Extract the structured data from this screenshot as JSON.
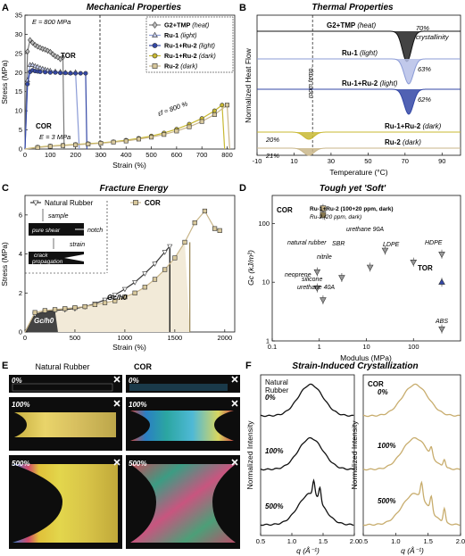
{
  "panels": {
    "A": {
      "letter": "A",
      "title": "Mechanical Properties",
      "xlabel": "Strain (%)",
      "ylabel": "Stress (MPa)",
      "xticks": [
        0,
        100,
        200,
        300,
        400,
        500,
        600,
        700,
        800
      ],
      "yticks": [
        0,
        5,
        10,
        15,
        20,
        25,
        30,
        35
      ],
      "annotations": {
        "modulus_high": "E ≈ 800 MPa",
        "modulus_low": "E = 3 MPa",
        "tor": "TOR",
        "cor": "COR",
        "strain_fail": "εf ≈ 800 %"
      },
      "legend": [
        {
          "name": "G2+TMP",
          "cond": "(heat)",
          "color": "#7a7a7a",
          "marker": "diamond"
        },
        {
          "name": "Ru-1",
          "cond": "(light)",
          "color": "#8b9bd6",
          "marker": "triangle"
        },
        {
          "name": "Ru-1+Ru-2",
          "cond": "(light)",
          "color": "#3347a6",
          "marker": "circle"
        },
        {
          "name": "Ru-1+Ru-2",
          "cond": "(dark)",
          "color": "#c8b832",
          "marker": "circle"
        },
        {
          "name": "Ru-2",
          "cond": "(dark)",
          "color": "#c9b68a",
          "marker": "square"
        }
      ]
    },
    "B": {
      "letter": "B",
      "title": "Thermal Properties",
      "xlabel": "Temperature (°C)",
      "ylabel": "Normalized Heat Flow",
      "xticks": [
        -10,
        10,
        30,
        50,
        70,
        90
      ],
      "annotation": "room temp.",
      "traces": [
        {
          "name": "G2+TMP",
          "cond": "(heat)",
          "value": "70%",
          "note": "crystallinity",
          "color": "#444444"
        },
        {
          "name": "Ru-1",
          "cond": "(light)",
          "value": "63%",
          "note": "",
          "color": "#8b9bd6"
        },
        {
          "name": "Ru-1+Ru-2",
          "cond": "(light)",
          "value": "62%",
          "note": "",
          "color": "#3347a6"
        },
        {
          "name": "Ru-1+Ru-2",
          "cond": "(dark)",
          "value": "20%",
          "note": "",
          "color": "#c8b832"
        },
        {
          "name": "Ru-2",
          "cond": "(dark)",
          "value": "21%",
          "note": "",
          "color": "#c9b68a"
        }
      ]
    },
    "C": {
      "letter": "C",
      "title": "Fracture Energy",
      "xlabel": "Strain (%)",
      "ylabel": "Stress (MPa)",
      "xticks": [
        0,
        500,
        1000,
        1500,
        2000
      ],
      "yticks": [
        0,
        2,
        4,
        6
      ],
      "legend": [
        {
          "name": "Natural Rubber",
          "color": "#333333",
          "marker": "triangle-down"
        },
        {
          "name": "COR",
          "color": "#c9b68a",
          "marker": "square"
        }
      ],
      "inset": {
        "sample": "sample",
        "pure_shear": "pure shear",
        "notch": "notch",
        "strain": "strain",
        "crack": "crack",
        "propagation": "propagation"
      },
      "area_label": "Gc/h0"
    },
    "D": {
      "letter": "D",
      "title": "Tough yet 'Soft'",
      "xlabel": "Modulus (MPa)",
      "ylabel": "Gc (kJ/m²)",
      "xticks": [
        "0.1",
        "1",
        "10",
        "100"
      ],
      "yticks": [
        "1",
        "10",
        "100"
      ],
      "cor_label": "COR",
      "cor_notes": [
        "Ru-1+Ru-2 (100+20 ppm, dark)",
        "Ru-2 (20 ppm, dark)"
      ],
      "tor_label": "TOR",
      "materials": [
        "natural rubber",
        "neoprene",
        "nitrile",
        "silicone",
        "urethane 40A",
        "SBR",
        "urethane 90A",
        "LDPE",
        "HDPE",
        "ABS"
      ]
    },
    "E": {
      "letter": "E",
      "col_left": "Natural Rubber",
      "col_right": "COR",
      "rows": [
        "0%",
        "100%",
        "500%"
      ]
    },
    "F": {
      "letter": "F",
      "title": "Strain-Induced Crystallization",
      "ylabel": "Normalized Intensity",
      "xlabel": "q (Å⁻¹)",
      "xticks": [
        "0.5",
        "1.0",
        "1.5",
        "2.0"
      ],
      "left_title_1": "Natural",
      "left_title_2": "Rubber",
      "right_title": "COR",
      "labels": [
        "0%",
        "100%",
        "500%"
      ]
    }
  },
  "chart_data": [
    {
      "panel": "A",
      "type": "line",
      "title": "Mechanical Properties",
      "xlabel": "Strain (%)",
      "ylabel": "Stress (MPa)",
      "xlim": [
        0,
        830
      ],
      "ylim": [
        0,
        35
      ],
      "series": [
        {
          "name": "G2+TMP (heat)",
          "color": "#7a7a7a",
          "x": [
            0,
            10,
            20,
            30,
            40,
            50,
            60,
            70,
            80,
            90,
            100,
            110,
            120,
            130,
            140,
            150,
            155
          ],
          "y": [
            0,
            25.5,
            28.5,
            27.8,
            27.2,
            26.8,
            26.5,
            26.2,
            26,
            25.7,
            25.4,
            24.8,
            24.3,
            24,
            23.5,
            24,
            0
          ]
        },
        {
          "name": "Ru-1 (light)",
          "color": "#8b9bd6",
          "x": [
            0,
            10,
            20,
            30,
            40,
            50,
            60,
            70,
            80,
            90,
            100,
            120,
            140,
            160,
            180,
            200,
            215
          ],
          "y": [
            0,
            18,
            22,
            22,
            21.7,
            21.5,
            21.2,
            21,
            20.8,
            20.6,
            20.5,
            20.3,
            20.2,
            20,
            19.9,
            20.1,
            0
          ]
        },
        {
          "name": "Ru-1+Ru-2 (light)",
          "color": "#3347a6",
          "x": [
            0,
            10,
            20,
            30,
            40,
            50,
            60,
            80,
            100,
            120,
            140,
            160,
            180,
            200,
            220,
            240,
            245
          ],
          "y": [
            0,
            17,
            20.2,
            20.6,
            20.4,
            20.3,
            20.2,
            20.1,
            20,
            20,
            19.9,
            19.9,
            19.8,
            19.8,
            19.8,
            19.8,
            0
          ]
        },
        {
          "name": "Ru-1+Ru-2 (dark)",
          "color": "#c8b832",
          "x": [
            0,
            50,
            100,
            150,
            200,
            250,
            300,
            350,
            400,
            450,
            500,
            550,
            600,
            650,
            700,
            750,
            780,
            790
          ],
          "y": [
            0,
            0.5,
            0.8,
            1,
            1.2,
            1.4,
            1.6,
            1.9,
            2.3,
            2.8,
            3.4,
            4.2,
            5.2,
            6.5,
            8,
            10,
            11.5,
            0
          ]
        },
        {
          "name": "Ru-2 (dark)",
          "color": "#c9b68a",
          "x": [
            0,
            50,
            100,
            150,
            200,
            250,
            300,
            350,
            400,
            450,
            500,
            550,
            600,
            650,
            700,
            750,
            800,
            810
          ],
          "y": [
            0,
            0.4,
            0.7,
            0.9,
            1.1,
            1.3,
            1.5,
            1.8,
            2.1,
            2.6,
            3.1,
            3.8,
            4.7,
            5.8,
            7.2,
            9,
            11.5,
            0
          ]
        }
      ]
    },
    {
      "panel": "B",
      "type": "line",
      "title": "Thermal Properties",
      "xlabel": "Temperature (°C)",
      "ylabel": "Normalized Heat Flow",
      "xlim": [
        -10,
        100
      ],
      "annotation_x": 20,
      "series": [
        {
          "name": "G2+TMP (heat)",
          "peak_x": 71,
          "depth": 1.0,
          "width": 3.5
        },
        {
          "name": "Ru-1 (light)",
          "peak_x": 72,
          "depth": 0.85,
          "width": 3.5
        },
        {
          "name": "Ru-1+Ru-2 (light)",
          "peak_x": 72,
          "depth": 0.85,
          "width": 3.5
        },
        {
          "name": "Ru-1+Ru-2 (dark)",
          "peak_x": 18,
          "depth": 0.3,
          "width": 4
        },
        {
          "name": "Ru-2 (dark)",
          "peak_x": 18,
          "depth": 0.3,
          "width": 4
        }
      ]
    },
    {
      "panel": "C",
      "type": "line",
      "title": "Fracture Energy",
      "xlabel": "Strain (%)",
      "ylabel": "Stress (MPa)",
      "xlim": [
        0,
        2100
      ],
      "ylim": [
        0,
        7
      ],
      "series": [
        {
          "name": "Natural Rubber",
          "color": "#333333",
          "x": [
            0,
            100,
            200,
            300,
            400,
            500,
            600,
            700,
            800,
            900,
            1000,
            1100,
            1200,
            1300,
            1400,
            1450
          ],
          "y": [
            0,
            0.9,
            1.05,
            1.1,
            1.15,
            1.2,
            1.3,
            1.45,
            1.65,
            1.9,
            2.2,
            2.55,
            3,
            3.5,
            4.1,
            4.4
          ]
        },
        {
          "name": "COR",
          "color": "#c9b68a",
          "x": [
            0,
            100,
            200,
            300,
            400,
            500,
            600,
            700,
            800,
            900,
            1000,
            1100,
            1200,
            1300,
            1400,
            1500,
            1600,
            1700,
            1800,
            1900,
            1950
          ],
          "y": [
            0,
            1,
            1.1,
            1.15,
            1.2,
            1.25,
            1.3,
            1.4,
            1.5,
            1.6,
            1.8,
            2.0,
            2.3,
            2.7,
            3.2,
            3.8,
            4.6,
            5.6,
            6.2,
            5.3,
            5.2
          ]
        }
      ]
    },
    {
      "panel": "D",
      "type": "scatter",
      "title": "Tough yet 'Soft'",
      "xlabel": "Modulus (MPa)",
      "ylabel": "Gc (kJ/m²)",
      "xlog": true,
      "ylog": true,
      "xlim": [
        0.1,
        1000
      ],
      "ylim": [
        1,
        300
      ],
      "points": [
        {
          "label": "COR (Ru-1+Ru-2)",
          "x": 1.2,
          "y": 180
        },
        {
          "label": "COR (Ru-2)",
          "x": 1.2,
          "y": 140
        },
        {
          "label": "natural rubber",
          "x": 0.9,
          "y": 15
        },
        {
          "label": "neoprene",
          "x": 0.9,
          "y": 8
        },
        {
          "label": "nitrile",
          "x": 3,
          "y": 12
        },
        {
          "label": "silicone / urethane 40A",
          "x": 1.2,
          "y": 5
        },
        {
          "label": "SBR",
          "x": 12,
          "y": 18
        },
        {
          "label": "urethane 90A",
          "x": 25,
          "y": 35
        },
        {
          "label": "LDPE",
          "x": 100,
          "y": 22
        },
        {
          "label": "HDPE",
          "x": 400,
          "y": 30
        },
        {
          "label": "TOR",
          "x": 400,
          "y": 10
        },
        {
          "label": "ABS",
          "x": 400,
          "y": 1.6
        }
      ]
    },
    {
      "panel": "F",
      "type": "line",
      "title": "Strain-Induced Crystallization",
      "xlabel": "q (Å⁻¹)",
      "ylabel": "Normalized Intensity",
      "xlim": [
        0.5,
        2.0
      ],
      "series": [
        {
          "name": "Natural Rubber 0%",
          "peaks": [
            1.3
          ]
        },
        {
          "name": "Natural Rubber 100%",
          "peaks": [
            1.3
          ]
        },
        {
          "name": "Natural Rubber 500%",
          "peaks": [
            1.2,
            1.35,
            1.45
          ]
        },
        {
          "name": "COR 0%",
          "peaks": [
            1.35
          ]
        },
        {
          "name": "COR 100%",
          "peaks": [
            1.35,
            1.55,
            1.75
          ]
        },
        {
          "name": "COR 500%",
          "peaks": [
            1.3,
            1.4,
            1.55,
            1.75
          ]
        }
      ]
    }
  ]
}
